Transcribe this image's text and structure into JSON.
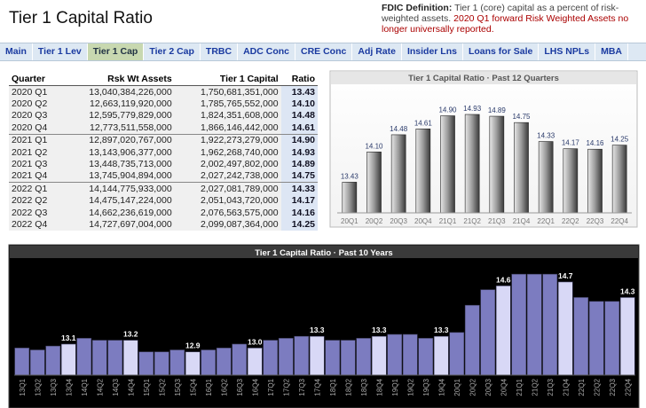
{
  "header": {
    "title": "Tier 1 Capital Ratio",
    "definition": {
      "label": "FDIC Definition:",
      "text": "Tier 1 (core) capital as a percent of risk-weighted assets.",
      "note": "2020 Q1 forward Risk Weighted Assets no longer universally reported."
    }
  },
  "nav": {
    "tabs": [
      "Main",
      "Tier 1 Lev",
      "Tier 1 Cap",
      "Tier 2 Cap",
      "TRBC",
      "ADC Conc",
      "CRE Conc",
      "Adj Rate",
      "Insider Lns",
      "Loans for Sale",
      "LHS NPLs",
      "MBA"
    ],
    "active": 2
  },
  "table": {
    "columns": [
      "Quarter",
      "Rsk Wt Assets",
      "Tier 1 Capital",
      "Ratio"
    ],
    "rows": [
      [
        "2020 Q1",
        "13,040,384,226,000",
        "1,750,681,351,000",
        "13.43"
      ],
      [
        "2020 Q2",
        "12,663,119,920,000",
        "1,785,765,552,000",
        "14.10"
      ],
      [
        "2020 Q3",
        "12,595,779,829,000",
        "1,824,351,608,000",
        "14.48"
      ],
      [
        "2020 Q4",
        "12,773,511,558,000",
        "1,866,146,442,000",
        "14.61"
      ],
      [
        "2021 Q1",
        "12,897,020,767,000",
        "1,922,273,279,000",
        "14.90"
      ],
      [
        "2021 Q2",
        "13,143,906,377,000",
        "1,962,268,740,000",
        "14.93"
      ],
      [
        "2021 Q3",
        "13,448,735,713,000",
        "2,002,497,802,000",
        "14.89"
      ],
      [
        "2021 Q4",
        "13,745,904,894,000",
        "2,027,242,738,000",
        "14.75"
      ],
      [
        "2022 Q1",
        "14,144,775,933,000",
        "2,027,081,789,000",
        "14.33"
      ],
      [
        "2022 Q2",
        "14,475,147,224,000",
        "2,051,043,720,000",
        "14.17"
      ],
      [
        "2022 Q3",
        "14,662,236,619,000",
        "2,076,563,575,000",
        "14.16"
      ],
      [
        "2022 Q4",
        "14,727,697,004,000",
        "2,099,087,364,000",
        "14.25"
      ]
    ]
  },
  "chart_data": [
    {
      "type": "bar",
      "title": "Tier 1 Capital Ratio · Past 12 Quarters",
      "categories": [
        "20Q1",
        "20Q2",
        "20Q3",
        "20Q4",
        "21Q1",
        "21Q2",
        "21Q3",
        "21Q4",
        "22Q1",
        "22Q2",
        "22Q3",
        "22Q4"
      ],
      "values": [
        13.43,
        14.1,
        14.48,
        14.61,
        14.9,
        14.93,
        14.89,
        14.75,
        14.33,
        14.17,
        14.16,
        14.25
      ],
      "value_labels": [
        "13.43",
        "14.10",
        "14.48",
        "14.61",
        "14.90",
        "14.93",
        "14.89",
        "14.75",
        "14.33",
        "14.17",
        "14.16",
        "14.25"
      ],
      "color": "#8a8a8a",
      "ylim": [
        12.75,
        15.5
      ]
    },
    {
      "type": "bar",
      "title": "Tier 1 Capital Ratio · Past 10 Years",
      "categories": [
        "13Q1",
        "13Q2",
        "13Q3",
        "13Q4",
        "14Q1",
        "14Q2",
        "14Q3",
        "14Q4",
        "15Q1",
        "15Q2",
        "15Q3",
        "15Q4",
        "16Q1",
        "16Q2",
        "16Q3",
        "16Q4",
        "17Q1",
        "17Q2",
        "17Q3",
        "17Q4",
        "18Q1",
        "18Q2",
        "18Q3",
        "18Q4",
        "19Q1",
        "19Q2",
        "19Q3",
        "19Q4",
        "20Q1",
        "20Q2",
        "20Q3",
        "20Q4",
        "21Q1",
        "21Q2",
        "21Q3",
        "21Q4",
        "22Q1",
        "22Q2",
        "22Q3",
        "22Q4"
      ],
      "values": [
        13.0,
        12.95,
        13.05,
        13.1,
        13.25,
        13.2,
        13.2,
        13.2,
        12.9,
        12.9,
        12.95,
        12.9,
        12.95,
        13.0,
        13.1,
        13.0,
        13.2,
        13.25,
        13.3,
        13.3,
        13.2,
        13.2,
        13.25,
        13.3,
        13.35,
        13.35,
        13.25,
        13.3,
        13.4,
        14.1,
        14.5,
        14.6,
        14.9,
        14.9,
        14.9,
        14.7,
        14.3,
        14.2,
        14.2,
        14.3
      ],
      "value_labels": [
        null,
        null,
        null,
        "13.1",
        null,
        null,
        null,
        "13.2",
        null,
        null,
        null,
        "12.9",
        null,
        null,
        null,
        "13.0",
        null,
        null,
        null,
        "13.3",
        null,
        null,
        null,
        "13.3",
        null,
        null,
        null,
        "13.3",
        null,
        null,
        null,
        "14.6",
        null,
        null,
        null,
        "14.7",
        null,
        null,
        null,
        "14.3"
      ],
      "color": "#7c7cc0",
      "highlight_color": "#d8d8f6",
      "ylim": [
        12.3,
        15.2
      ]
    }
  ]
}
